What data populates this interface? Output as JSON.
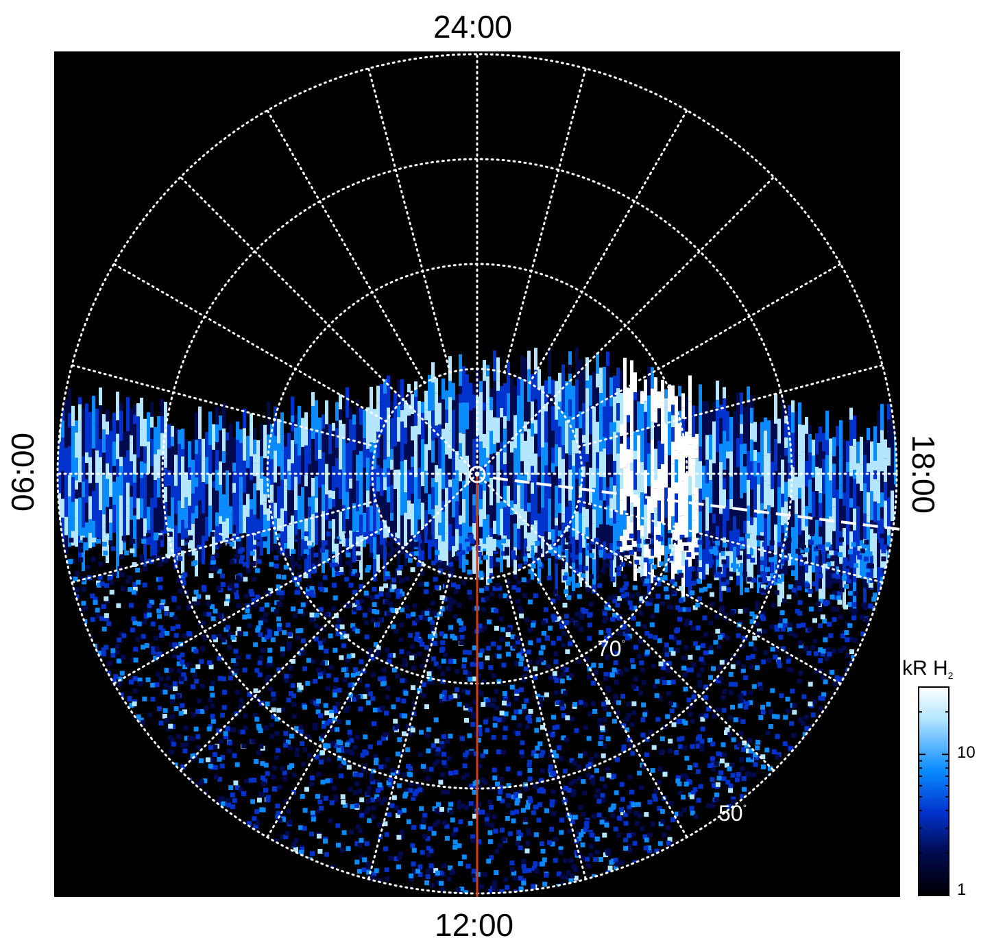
{
  "local_time_labels": {
    "top": "24:00",
    "bottom": "12:00",
    "left": "06:00",
    "right": "18:00"
  },
  "latitude_labels": [
    {
      "text": "70",
      "deg": "°",
      "latitude": 70
    },
    {
      "text": "50",
      "deg": "°",
      "latitude": 50
    }
  ],
  "colorbar": {
    "unit": "kR H",
    "unit_sub": "2",
    "ticks": [
      "10",
      "1"
    ],
    "tick_values": [
      10,
      1
    ],
    "range": [
      1,
      30
    ],
    "scale": "log",
    "colors": [
      "#000000",
      "#000a4d",
      "#0033cc",
      "#0a8cff",
      "#b4e6ff",
      "#ffffff"
    ]
  },
  "map": {
    "projection": "polar",
    "outer_latitude": 50,
    "latitude_circles": [
      80,
      70,
      60,
      50
    ],
    "meridian_step_hours": 1,
    "background": "#000000",
    "grid_color": "#ffffff",
    "meridian_line_color": "#d23c14"
  }
}
